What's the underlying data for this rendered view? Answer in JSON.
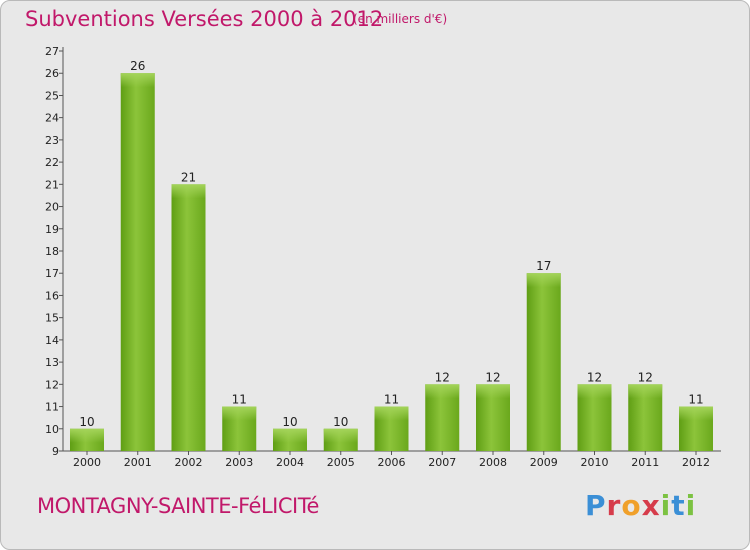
{
  "chart_data": {
    "type": "bar",
    "title": "Subventions Versées 2000 à 2012",
    "subtitle": "(en milliers d'€)",
    "categories": [
      "2000",
      "2001",
      "2002",
      "2003",
      "2004",
      "2005",
      "2006",
      "2007",
      "2008",
      "2009",
      "2010",
      "2011",
      "2012"
    ],
    "values": [
      10,
      26,
      21,
      11,
      10,
      10,
      11,
      12,
      12,
      17,
      12,
      12,
      11
    ],
    "ylim": [
      9,
      27
    ],
    "yticks": [
      9,
      10,
      11,
      12,
      13,
      14,
      15,
      16,
      17,
      18,
      19,
      20,
      21,
      22,
      23,
      24,
      25,
      26,
      27
    ],
    "xlabel": "",
    "ylabel": "",
    "grid": false,
    "bar_color": "#7cbd2c"
  },
  "footer": {
    "commune": "MONTAGNY-SAINTE-FéLICITé",
    "brand": [
      "P",
      "r",
      "o",
      "x",
      "i",
      "t",
      "i"
    ]
  },
  "colors": {
    "title": "#c1186a",
    "background": "#e8e8e8"
  }
}
